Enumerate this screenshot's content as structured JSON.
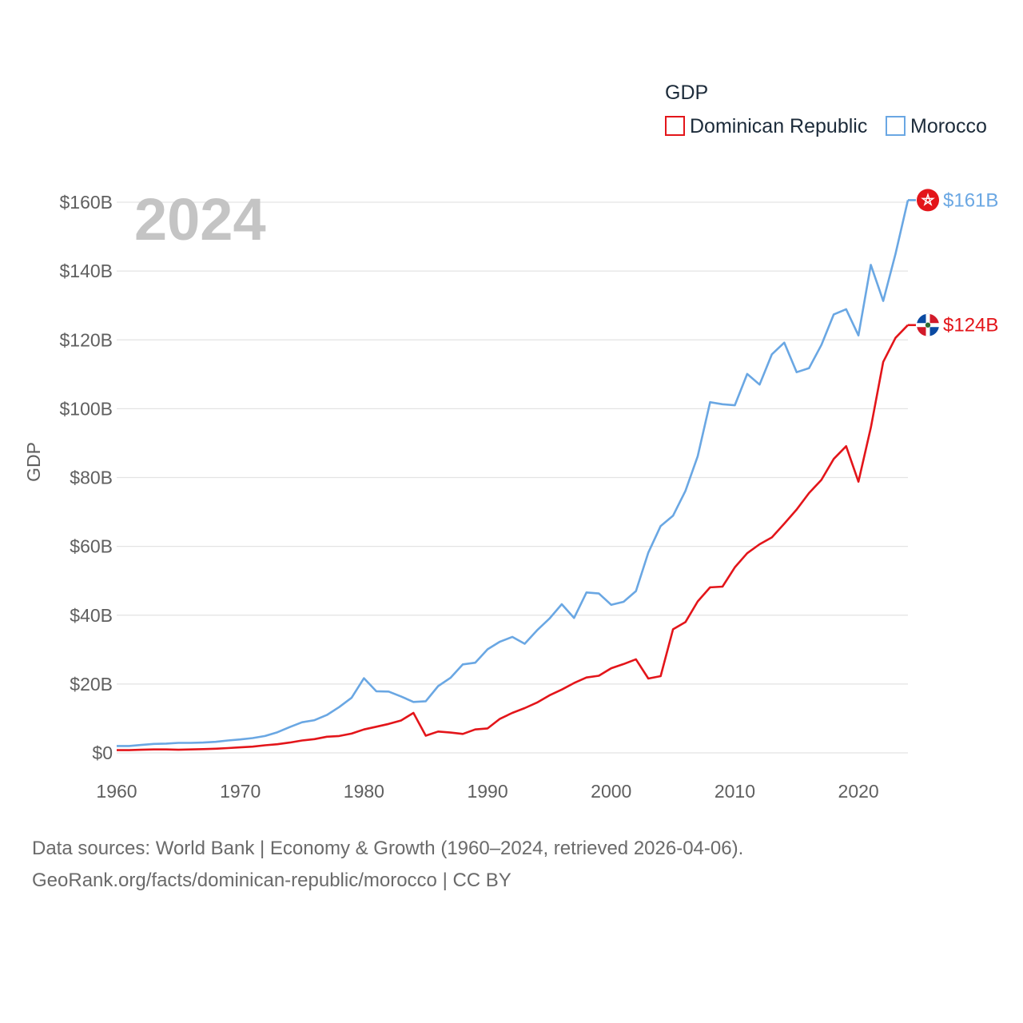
{
  "chart_data": {
    "type": "line",
    "title": "",
    "year_label": "2024",
    "legend_title": "GDP",
    "ylabel": "GDP",
    "xlabel": "",
    "xlim": [
      1960,
      2024
    ],
    "ylim": [
      0,
      160
    ],
    "x_ticks": [
      1960,
      1970,
      1980,
      1990,
      2000,
      2010,
      2020
    ],
    "x_tick_labels": [
      "1960",
      "1970",
      "1980",
      "1990",
      "2000",
      "2010",
      "2020"
    ],
    "y_ticks": [
      0,
      20,
      40,
      60,
      80,
      100,
      120,
      140,
      160
    ],
    "y_tick_labels": [
      "$0",
      "$20B",
      "$40B",
      "$60B",
      "$80B",
      "$100B",
      "$120B",
      "$140B",
      "$160B"
    ],
    "grid": true,
    "legend_position": "top-right",
    "x": [
      1960,
      1961,
      1962,
      1963,
      1964,
      1965,
      1966,
      1967,
      1968,
      1969,
      1970,
      1971,
      1972,
      1973,
      1974,
      1975,
      1976,
      1977,
      1978,
      1979,
      1980,
      1981,
      1982,
      1983,
      1984,
      1985,
      1986,
      1987,
      1988,
      1989,
      1990,
      1991,
      1992,
      1993,
      1994,
      1995,
      1996,
      1997,
      1998,
      1999,
      2000,
      2001,
      2002,
      2003,
      2004,
      2005,
      2006,
      2007,
      2008,
      2009,
      2010,
      2011,
      2012,
      2013,
      2014,
      2015,
      2016,
      2017,
      2018,
      2019,
      2020,
      2021,
      2022,
      2023,
      2024
    ],
    "series": [
      {
        "name": "Dominican Republic",
        "color": "#e3151a",
        "end_label": "$124B",
        "values": [
          0.8,
          0.8,
          0.9,
          1.0,
          1.0,
          0.9,
          1.0,
          1.1,
          1.2,
          1.4,
          1.6,
          1.8,
          2.2,
          2.5,
          3.0,
          3.6,
          4.0,
          4.7,
          4.9,
          5.6,
          6.8,
          7.6,
          8.4,
          9.4,
          11.6,
          5.0,
          6.2,
          5.9,
          5.5,
          6.8,
          7.1,
          9.9,
          11.6,
          13.0,
          14.6,
          16.7,
          18.4,
          20.3,
          21.9,
          22.4,
          24.6,
          25.8,
          27.2,
          21.6,
          22.3,
          35.9,
          38.0,
          44.0,
          48.1,
          48.3,
          53.9,
          58.0,
          60.6,
          62.6,
          66.6,
          70.7,
          75.5,
          79.3,
          85.4,
          89.1,
          78.8,
          94.5,
          113.6,
          120.6,
          124.3
        ]
      },
      {
        "name": "Morocco",
        "color": "#6aa7e3",
        "end_label": "$161B",
        "values": [
          2.0,
          2.0,
          2.3,
          2.6,
          2.7,
          2.9,
          2.9,
          3.0,
          3.2,
          3.6,
          3.9,
          4.3,
          4.9,
          6.0,
          7.5,
          8.9,
          9.5,
          11.0,
          13.3,
          16.0,
          21.7,
          17.9,
          17.8,
          16.4,
          14.8,
          15.0,
          19.4,
          21.8,
          25.7,
          26.2,
          30.1,
          32.3,
          33.7,
          31.7,
          35.6,
          39.0,
          43.2,
          39.2,
          46.6,
          46.3,
          43.0,
          43.9,
          47.0,
          58.2,
          65.9,
          68.9,
          76.1,
          86.2,
          101.9,
          101.3,
          101.0,
          110.1,
          107.0,
          115.8,
          119.2,
          110.6,
          111.8,
          118.5,
          127.4,
          128.9,
          121.3,
          141.8,
          131.3,
          145.0,
          160.6
        ]
      }
    ]
  },
  "footer": {
    "source_line": "Data sources: World Bank | Economy & Growth (1960–2024, retrieved 2026-04-06).",
    "credit_line": "GeoRank.org/facts/dominican-republic/morocco | CC BY"
  }
}
